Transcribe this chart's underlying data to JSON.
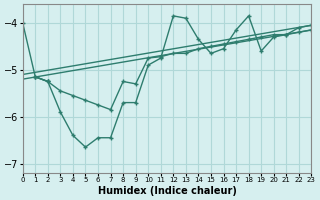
{
  "xlabel": "Humidex (Indice chaleur)",
  "ylabel": "",
  "background_color": "#d6efef",
  "grid_color": "#b0d8d8",
  "line_color": "#2e7d6e",
  "xlim": [
    0,
    23
  ],
  "ylim": [
    -7.2,
    -3.6
  ],
  "yticks": [
    -7,
    -6,
    -5,
    -4
  ],
  "xticks": [
    0,
    1,
    2,
    3,
    4,
    5,
    6,
    7,
    8,
    9,
    10,
    11,
    12,
    13,
    14,
    15,
    16,
    17,
    18,
    19,
    20,
    21,
    22,
    23
  ],
  "line1_x": [
    0,
    1,
    2
  ],
  "line1_y": [
    -4.0,
    -5.15,
    -5.25
  ],
  "line2_x": [
    1,
    2,
    3,
    4,
    5,
    6,
    7,
    8,
    9,
    10,
    11,
    12,
    13,
    14,
    15,
    16,
    17,
    18,
    19,
    20,
    21,
    22,
    23
  ],
  "line2_y": [
    -5.15,
    -5.25,
    -5.9,
    -6.4,
    -6.65,
    -6.45,
    -6.45,
    -5.7,
    -5.7,
    -4.9,
    -4.75,
    -3.85,
    -3.9,
    -4.35,
    -4.65,
    -4.55,
    -4.15,
    -3.85,
    -4.6,
    -4.3,
    -4.25,
    -4.1,
    -4.05
  ],
  "line3_x": [
    0,
    23
  ],
  "line3_y": [
    -5.1,
    -4.05
  ],
  "line4_x": [
    0,
    23
  ],
  "line4_y": [
    -5.2,
    -4.15
  ],
  "line5_x": [
    1,
    2,
    3,
    4,
    5,
    6,
    7,
    8,
    9,
    10,
    11,
    12,
    13,
    14,
    15,
    16,
    17,
    18,
    19,
    20,
    21,
    22,
    23
  ],
  "line5_y": [
    -5.15,
    -5.25,
    -5.45,
    -5.55,
    -5.65,
    -5.75,
    -5.85,
    -5.25,
    -5.3,
    -4.75,
    -4.72,
    -4.65,
    -4.65,
    -4.55,
    -4.5,
    -4.45,
    -4.4,
    -4.35,
    -4.3,
    -4.25,
    -4.25,
    -4.2,
    -4.15
  ]
}
